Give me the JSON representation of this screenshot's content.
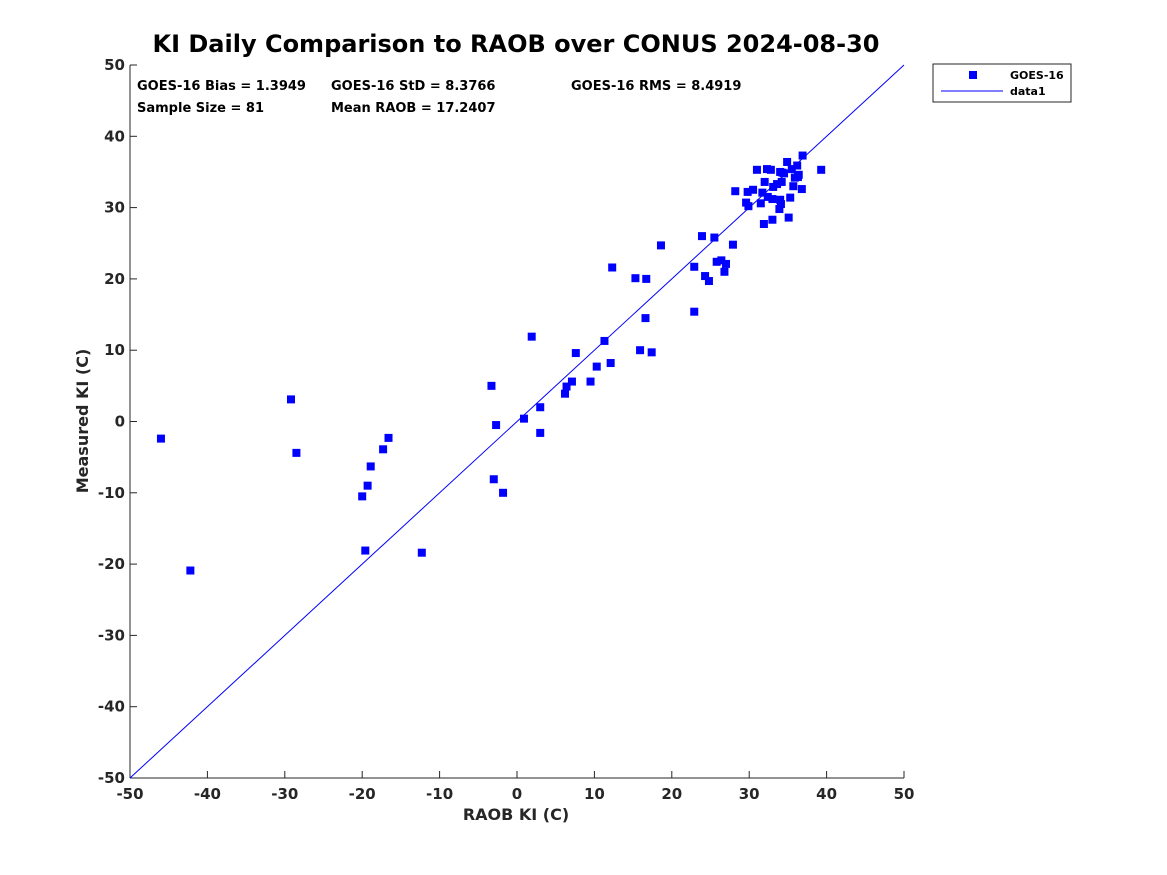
{
  "chart_data": {
    "type": "scatter",
    "title": "KI Daily Comparison to RAOB over CONUS 2024-08-30",
    "xlabel": "RAOB KI (C)",
    "ylabel": "Measured KI (C)",
    "xlim": [
      -50,
      50
    ],
    "ylim": [
      -50,
      50
    ],
    "x_ticks": [
      "-50",
      "-40",
      "-30",
      "-20",
      "-10",
      "0",
      "10",
      "20",
      "30",
      "40",
      "50"
    ],
    "y_ticks": [
      "-50",
      "-40",
      "-30",
      "-20",
      "-10",
      "0",
      "10",
      "20",
      "30",
      "40",
      "50"
    ],
    "grid": false,
    "legend_position": "top-right",
    "colors": {
      "series": "#0000ff",
      "axis": "#262626"
    },
    "stats": {
      "bias": "GOES-16 Bias = 1.3949",
      "std": "GOES-16 StD = 8.3766",
      "rms": "GOES-16 RMS = 8.4919",
      "sample_size": "Sample Size = 81",
      "mean_raob": "Mean RAOB = 17.2407"
    },
    "series": [
      {
        "name": "GOES-16",
        "marker": "square",
        "points": [
          [
            -46.0,
            -2.4
          ],
          [
            -42.2,
            -20.9
          ],
          [
            -29.2,
            3.1
          ],
          [
            -28.5,
            -4.4
          ],
          [
            -20.0,
            -10.5
          ],
          [
            -19.6,
            -18.1
          ],
          [
            -19.3,
            -9.0
          ],
          [
            -18.9,
            -6.3
          ],
          [
            -17.3,
            -3.9
          ],
          [
            -16.6,
            -2.3
          ],
          [
            -12.3,
            -18.4
          ],
          [
            -3.3,
            5.0
          ],
          [
            -3.0,
            -8.1
          ],
          [
            -2.7,
            -0.5
          ],
          [
            -1.8,
            -10.0
          ],
          [
            0.9,
            0.4
          ],
          [
            1.9,
            11.9
          ],
          [
            3.0,
            2.0
          ],
          [
            3.0,
            -1.6
          ],
          [
            6.2,
            3.9
          ],
          [
            6.4,
            4.9
          ],
          [
            7.1,
            5.6
          ],
          [
            7.6,
            9.6
          ],
          [
            9.5,
            5.6
          ],
          [
            10.3,
            7.7
          ],
          [
            11.3,
            11.3
          ],
          [
            12.1,
            8.2
          ],
          [
            12.3,
            21.6
          ],
          [
            15.3,
            20.1
          ],
          [
            15.9,
            10.0
          ],
          [
            16.6,
            14.5
          ],
          [
            16.7,
            20.0
          ],
          [
            17.4,
            9.7
          ],
          [
            18.6,
            24.7
          ],
          [
            22.9,
            21.7
          ],
          [
            22.9,
            15.4
          ],
          [
            23.9,
            26.0
          ],
          [
            24.3,
            20.4
          ],
          [
            24.8,
            19.7
          ],
          [
            25.5,
            25.8
          ],
          [
            25.8,
            22.4
          ],
          [
            26.4,
            22.6
          ],
          [
            26.8,
            21.0
          ],
          [
            27.0,
            22.1
          ],
          [
            27.9,
            24.8
          ],
          [
            28.2,
            32.3
          ],
          [
            29.6,
            30.7
          ],
          [
            29.8,
            32.2
          ],
          [
            29.9,
            30.2
          ],
          [
            30.5,
            32.5
          ],
          [
            31.0,
            35.3
          ],
          [
            31.5,
            30.6
          ],
          [
            31.7,
            32.1
          ],
          [
            31.9,
            27.7
          ],
          [
            32.0,
            33.6
          ],
          [
            32.3,
            35.4
          ],
          [
            32.4,
            31.5
          ],
          [
            32.8,
            35.3
          ],
          [
            33.0,
            28.3
          ],
          [
            33.0,
            31.2
          ],
          [
            33.1,
            32.9
          ],
          [
            33.6,
            33.3
          ],
          [
            33.9,
            29.8
          ],
          [
            34.0,
            31.1
          ],
          [
            34.1,
            30.5
          ],
          [
            34.2,
            33.6
          ],
          [
            34.3,
            34.9
          ],
          [
            34.5,
            34.8
          ],
          [
            34.9,
            36.4
          ],
          [
            35.1,
            28.6
          ],
          [
            35.3,
            31.4
          ],
          [
            35.5,
            35.4
          ],
          [
            35.7,
            33.0
          ],
          [
            35.9,
            34.2
          ],
          [
            36.2,
            35.9
          ],
          [
            36.3,
            34.3
          ],
          [
            36.4,
            34.6
          ],
          [
            36.8,
            32.6
          ],
          [
            36.9,
            37.3
          ],
          [
            39.3,
            35.3
          ],
          [
            34.0,
            35.0
          ]
        ]
      },
      {
        "name": "data1",
        "type": "line",
        "x": [
          -50,
          50
        ],
        "y": [
          -50,
          50
        ]
      }
    ]
  }
}
